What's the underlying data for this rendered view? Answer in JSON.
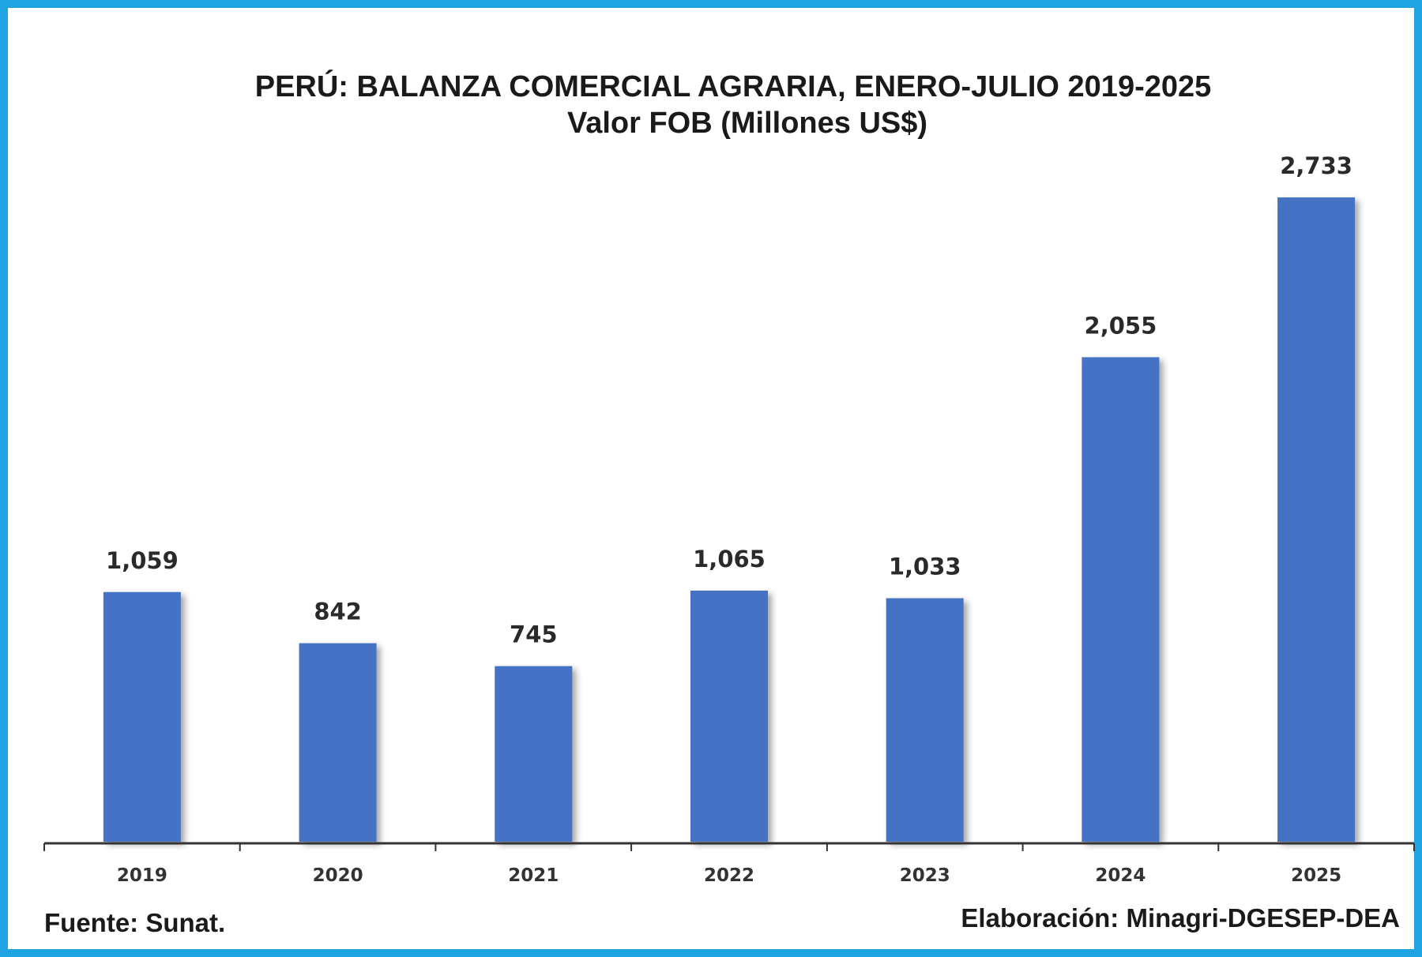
{
  "chart_data": {
    "type": "bar",
    "title": "PERÚ: BALANZA COMERCIAL AGRARIA, ENERO-JULIO 2019-2025",
    "subtitle": "Valor FOB (Millones US$)",
    "categories": [
      "2019",
      "2020",
      "2021",
      "2022",
      "2023",
      "2024",
      "2025"
    ],
    "values": [
      1059,
      842,
      745,
      1065,
      1033,
      2055,
      2733
    ],
    "value_labels": [
      "1,059",
      "842",
      "745",
      "1,065",
      "1,033",
      "2,055",
      "2,733"
    ],
    "xlabel": "",
    "ylabel": "",
    "ylim": [
      0,
      2733
    ],
    "grid": false,
    "legend": "none",
    "bar_color": "#4472c4"
  },
  "footer": {
    "source": "Fuente: Sunat.",
    "credit": "Elaboración: Minagri-DGESEP-DEA"
  },
  "colors": {
    "frame": "#1fa3e3",
    "bar": "#4472c4",
    "axis": "#333333"
  }
}
